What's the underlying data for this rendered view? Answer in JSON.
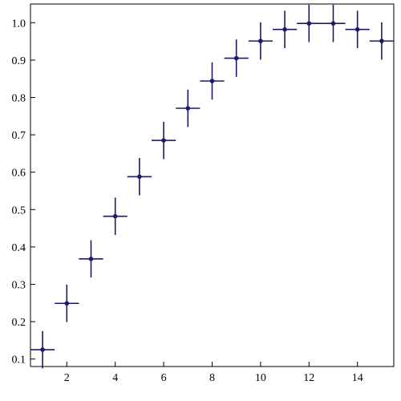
{
  "chart_data": {
    "type": "scatter",
    "title": "",
    "xlabel": "",
    "ylabel": "",
    "xlim": [
      0.5,
      15.5
    ],
    "ylim": [
      0.08,
      1.05
    ],
    "x_ticks": [
      2,
      4,
      6,
      8,
      10,
      12,
      14
    ],
    "x_tick_labels": [
      "2",
      "4",
      "6",
      "8",
      "10",
      "12",
      "14"
    ],
    "y_ticks": [
      0.1,
      0.2,
      0.3,
      0.4,
      0.5,
      0.6,
      0.7,
      0.8,
      0.9,
      1.0
    ],
    "y_tick_labels": [
      "0.1",
      "0.2",
      "0.3",
      "0.4",
      "0.5",
      "0.6",
      "0.7",
      "0.8",
      "0.9",
      "1.0"
    ],
    "grid": false,
    "legend": "none",
    "error_bars": {
      "x_error": 0.5,
      "y_error": 0.05
    },
    "series": [
      {
        "color": "#1a1a6e",
        "x": [
          1,
          2,
          3,
          4,
          5,
          6,
          7,
          8,
          9,
          10,
          11,
          12,
          13,
          14,
          15
        ],
        "y": [
          0.125,
          0.249,
          0.368,
          0.482,
          0.588,
          0.685,
          0.771,
          0.844,
          0.905,
          0.951,
          0.982,
          0.998,
          0.998,
          0.982,
          0.951
        ]
      }
    ]
  }
}
